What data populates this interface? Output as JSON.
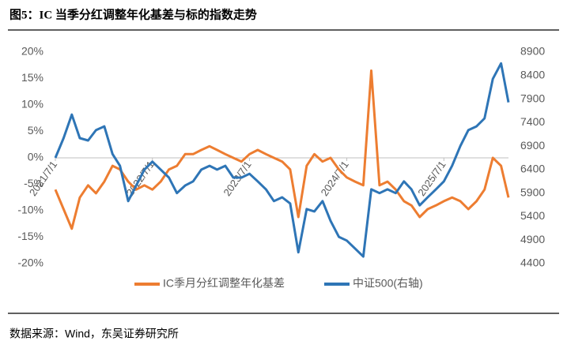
{
  "header": {
    "title": "图5：IC 当季分红调整年化基差与标的指数走势"
  },
  "chart_data": {
    "type": "line",
    "x": [
      "2021/7/1",
      "2021/8/1",
      "2021/9/1",
      "2021/10/1",
      "2021/11/1",
      "2021/12/1",
      "2022/1/1",
      "2022/2/1",
      "2022/3/1",
      "2022/4/1",
      "2022/5/1",
      "2022/6/1",
      "2022/7/1",
      "2022/8/1",
      "2022/9/1",
      "2022/10/1",
      "2022/11/1",
      "2022/12/1",
      "2023/1/1",
      "2023/2/1",
      "2023/3/1",
      "2023/4/1",
      "2023/5/1",
      "2023/6/1",
      "2023/7/1",
      "2023/8/1",
      "2023/9/1",
      "2023/10/1",
      "2023/11/1",
      "2023/12/1",
      "2024/1/1",
      "2024/2/1",
      "2024/3/1",
      "2024/4/1",
      "2024/5/1",
      "2024/6/1",
      "2024/7/1",
      "2024/8/1",
      "2024/9/1",
      "2024/10/1",
      "2024/11/1",
      "2024/12/1",
      "2025/1/1",
      "2025/2/1",
      "2025/3/1",
      "2025/4/1",
      "2025/5/1",
      "2025/6/1",
      "2025/7/1",
      "2025/8/1",
      "2025/9/1",
      "2025/10/1",
      "2025/11/1",
      "2025/12/1",
      "2026/1/1",
      "2026/2/1",
      "2026/3/1"
    ],
    "xlim": [
      "2021/7/1",
      "2026/3/1"
    ],
    "xticks": [
      "2021/7/1",
      "2022/7/1",
      "2023/7/1",
      "2024/7/1",
      "2025/7/1"
    ],
    "series": [
      {
        "name": "IC季月分红调整年化基差",
        "color": "#ed7d31",
        "axis": "y",
        "values": [
          -6.0,
          -9.7,
          -13.4,
          -7.5,
          -5.2,
          -6.7,
          -4.5,
          -1.5,
          -2.2,
          -4.5,
          -6.0,
          -5.2,
          -6.0,
          -4.5,
          -2.2,
          -1.5,
          0.7,
          0.7,
          1.5,
          2.2,
          1.5,
          0.7,
          0,
          -0.7,
          0.7,
          1.5,
          0.7,
          0,
          -0.7,
          -2.2,
          -11.2,
          -1.5,
          0.7,
          -0.7,
          0,
          -2.2,
          -3.7,
          -4.5,
          -5.2,
          16.5,
          -5.2,
          -4.5,
          -6.0,
          -8.2,
          -9.0,
          -11.2,
          -9.7,
          -9.0,
          -8.2,
          -7.5,
          -8.2,
          -9.7,
          -8.2,
          -6.0,
          0,
          -1.5,
          -7.5
        ]
      },
      {
        "name": "中证500(右轴)",
        "color": "#2e75b6",
        "axis": "y2",
        "values": [
          6650,
          7070,
          7570,
          7070,
          7020,
          7240,
          7320,
          6730,
          6480,
          5730,
          6060,
          6400,
          6570,
          6400,
          6230,
          5900,
          6060,
          6150,
          6400,
          6480,
          6400,
          6480,
          6230,
          6230,
          6310,
          6150,
          5980,
          5730,
          5810,
          5680,
          4640,
          5560,
          5510,
          5730,
          5310,
          4970,
          4890,
          4720,
          4550,
          5980,
          5900,
          5980,
          5900,
          6150,
          5980,
          5640,
          5810,
          5980,
          6150,
          6480,
          6900,
          7240,
          7320,
          7490,
          8330,
          8660,
          7830
        ]
      }
    ],
    "ylim": [
      -20,
      20
    ],
    "yticks": [
      {
        "value": -20,
        "label": "-20%"
      },
      {
        "value": -15,
        "label": "-15%"
      },
      {
        "value": -10,
        "label": "-10%"
      },
      {
        "value": -5,
        "label": "-5%"
      },
      {
        "value": 0,
        "label": "0%"
      },
      {
        "value": 5,
        "label": "5%"
      },
      {
        "value": 10,
        "label": "10%"
      },
      {
        "value": 15,
        "label": "15%"
      },
      {
        "value": 20,
        "label": "20%"
      }
    ],
    "y2lim": [
      4400,
      8900
    ],
    "y2ticks": [
      4400,
      4900,
      5400,
      5900,
      6400,
      6900,
      7400,
      7900,
      8400,
      8900
    ]
  },
  "footer": {
    "source": "数据来源：Wind，东吴证券研究所"
  }
}
